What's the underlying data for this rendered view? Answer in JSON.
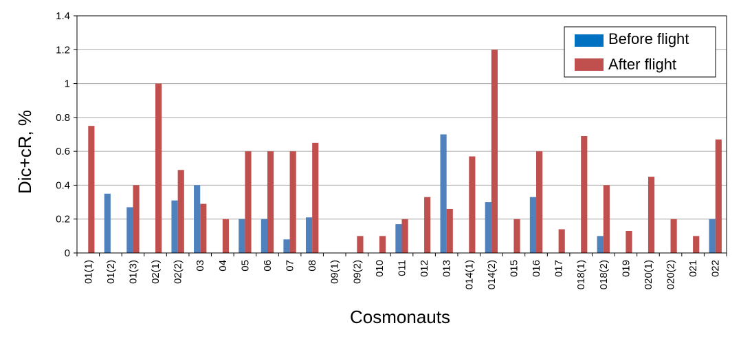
{
  "chart_data": {
    "type": "bar",
    "title": "",
    "xlabel": "Cosmonauts",
    "ylabel": "Dic+cR, %",
    "ylim": [
      0,
      1.4
    ],
    "yticks": [
      "0",
      "0.2",
      "0.4",
      "0.6",
      "0.8",
      "1",
      "1.2",
      "1.4"
    ],
    "ytick_values": [
      0,
      0.2,
      0.4,
      0.6,
      0.8,
      1.0,
      1.2,
      1.4
    ],
    "grid": true,
    "legend_position": "top-right",
    "categories": [
      "01(1)",
      "01(2)",
      "01(3)",
      "02(1)",
      "02(2)",
      "03",
      "04",
      "05",
      "06",
      "07",
      "08",
      "09(1)",
      "09(2)",
      "010",
      "011",
      "012",
      "013",
      "014(1)",
      "014(2)",
      "015",
      "016",
      "017",
      "018(1)",
      "018(2)",
      "019",
      "020(1)",
      "020(2)",
      "021",
      "022"
    ],
    "series": [
      {
        "name": "Before flight",
        "color": "#4F81BD",
        "values": [
          0,
          0.35,
          0.27,
          0,
          0.31,
          0.4,
          0,
          0.2,
          0.2,
          0.08,
          0.21,
          0,
          0,
          0,
          0.17,
          0,
          0.7,
          0,
          0.3,
          0,
          0.33,
          0,
          0,
          0.1,
          0,
          0,
          0,
          0,
          0.2
        ]
      },
      {
        "name": "After flight",
        "color": "#C0504D",
        "values": [
          0.75,
          0,
          0.4,
          1.0,
          0.49,
          0.29,
          0.2,
          0.6,
          0.6,
          0.6,
          0.65,
          0,
          0.1,
          0.1,
          0.2,
          0.33,
          0.26,
          0.57,
          1.2,
          0.2,
          0.6,
          0.14,
          0.69,
          0.4,
          0.13,
          0.45,
          0.2,
          0.1,
          0.67
        ]
      }
    ],
    "legend_swatch_colors": [
      "#0070C0",
      "#C0504D"
    ]
  }
}
